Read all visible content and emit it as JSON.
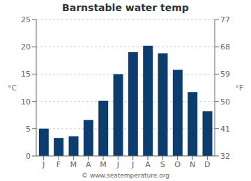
{
  "chart_data": {
    "type": "bar",
    "title": "Barnstable water temp",
    "categories": [
      "J",
      "F",
      "M",
      "A",
      "M",
      "J",
      "J",
      "A",
      "S",
      "O",
      "N",
      "D"
    ],
    "values": [
      5.0,
      3.3,
      3.6,
      6.6,
      10.1,
      15.0,
      19.0,
      20.2,
      18.8,
      15.8,
      11.7,
      8.2
    ],
    "color": "#0d3d6e",
    "ylabel": "°C",
    "ylim": [
      0,
      25
    ],
    "yticks": [
      0,
      5,
      10,
      15,
      20,
      25
    ],
    "y2label": "°F",
    "y2lim": [
      32,
      77
    ],
    "y2ticks": [
      32,
      41,
      50,
      59,
      68,
      77
    ],
    "grid": true,
    "annotations": [
      "© www.seatemperature.org"
    ]
  }
}
